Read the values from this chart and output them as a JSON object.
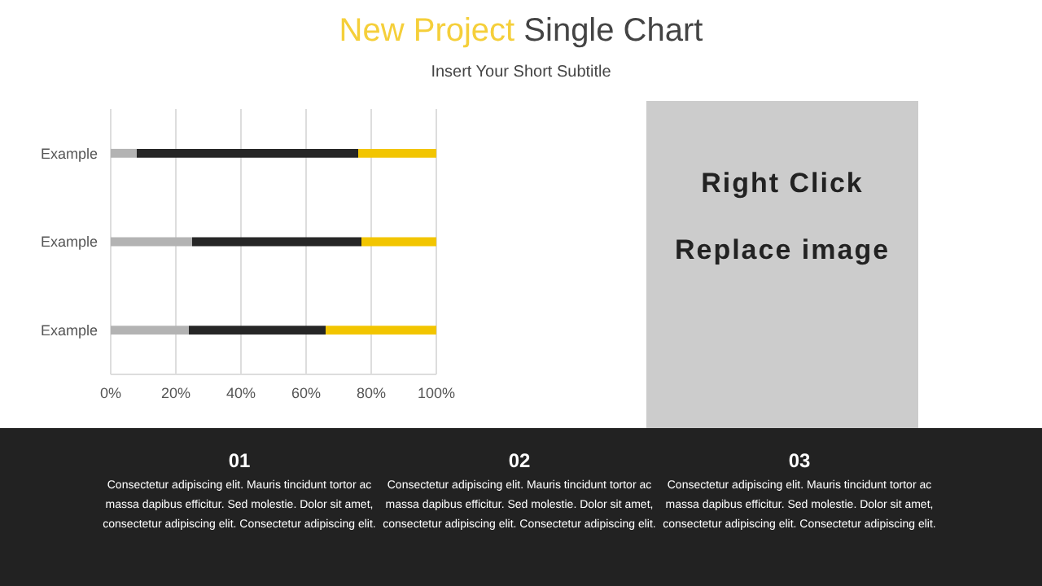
{
  "chart_data": {
    "type": "bar",
    "title": "New Project Single Chart",
    "subtitle": "Insert Your Short Subtitle",
    "orientation": "horizontal",
    "stacked": true,
    "grid": "x",
    "categories": [
      "Example",
      "Example",
      "Example"
    ],
    "series": [
      {
        "color": "#b3b3b3",
        "values": [
          8,
          25,
          24
        ]
      },
      {
        "color": "#262626",
        "values": [
          68,
          52,
          42
        ]
      },
      {
        "color": "#f2c500",
        "values": [
          24,
          23,
          34
        ]
      }
    ],
    "xlim": [
      0,
      100
    ],
    "xticks": [
      {
        "value": 0,
        "label": "0%"
      },
      {
        "value": 20,
        "label": "20%"
      },
      {
        "value": 40,
        "label": "40%"
      },
      {
        "value": 60,
        "label": "60%"
      },
      {
        "value": 80,
        "label": "80%"
      },
      {
        "value": 100,
        "label": "100%"
      }
    ],
    "annotations": [
      "Right Click",
      "Replace image",
      "01",
      "Consectetur adipiscing elit. Mauris tincidunt tortor ac massa dapibus efficitur. Sed molestie. Dolor sit amet, consectetur adipiscing elit. Consectetur adipiscing elit.",
      "02",
      "Consectetur adipiscing elit. Mauris tincidunt tortor ac massa dapibus efficitur. Sed molestie. Dolor sit amet, consectetur adipiscing elit. Consectetur adipiscing elit.",
      "03",
      "Consectetur adipiscing elit. Mauris tincidunt tortor ac massa dapibus efficitur. Sed molestie. Dolor sit amet, consectetur adipiscing elit. Consectetur adipiscing elit."
    ]
  }
}
